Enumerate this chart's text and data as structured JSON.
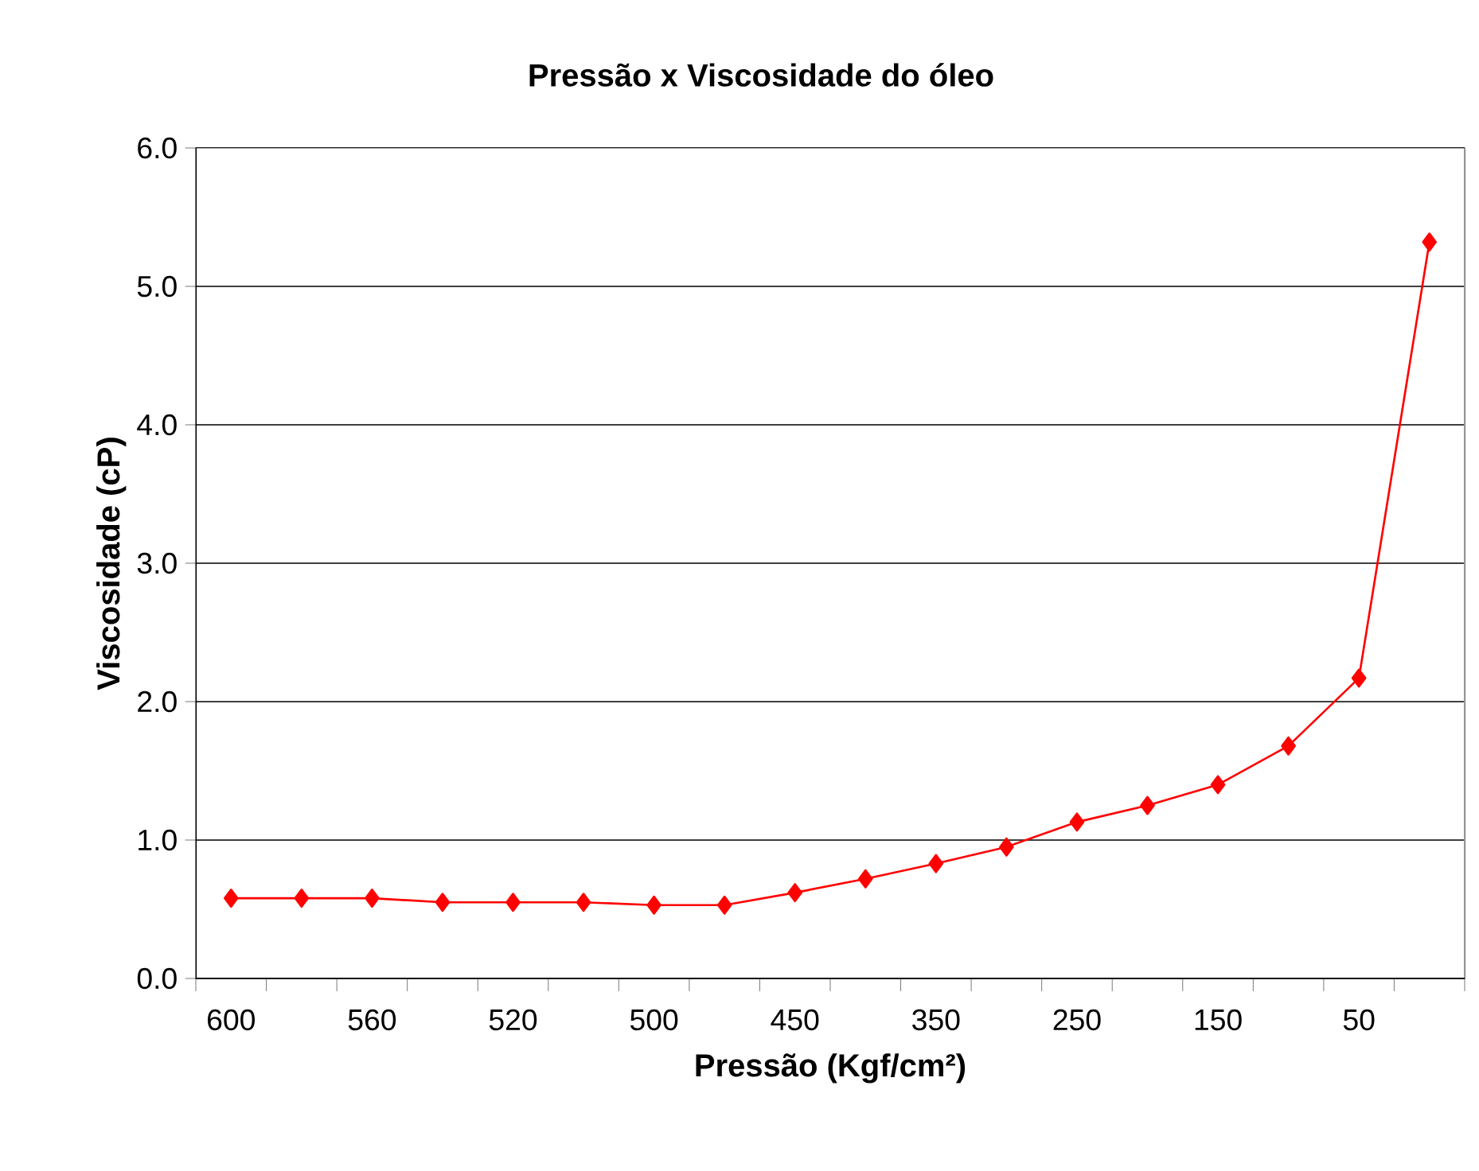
{
  "chart_data": {
    "type": "line",
    "title": "Pressão x Viscosidade do óleo",
    "xlabel": "Pressão (Kgf/cm²)",
    "ylabel": "Viscosidade (cP)",
    "categories": [
      "600",
      null,
      "560",
      null,
      "520",
      null,
      "500",
      null,
      "450",
      null,
      "350",
      null,
      "250",
      null,
      "150",
      null,
      "50",
      null
    ],
    "series": [
      {
        "color": "#ff0000",
        "values": [
          0.58,
          0.58,
          0.58,
          0.55,
          0.55,
          0.55,
          0.53,
          0.53,
          0.62,
          0.72,
          0.83,
          0.95,
          1.13,
          1.25,
          1.4,
          1.68,
          2.17,
          5.32
        ]
      }
    ],
    "ylim": [
      0,
      6
    ],
    "yticks": [
      {
        "value": 0,
        "label": "0.0"
      },
      {
        "value": 1,
        "label": "1.0"
      },
      {
        "value": 2,
        "label": "2.0"
      },
      {
        "value": 3,
        "label": "3.0"
      },
      {
        "value": 4,
        "label": "4.0"
      },
      {
        "value": 5,
        "label": "5.0"
      },
      {
        "value": 6,
        "label": "6.0"
      }
    ],
    "grid": "y",
    "marker": "diamond",
    "line_style": "solid"
  }
}
